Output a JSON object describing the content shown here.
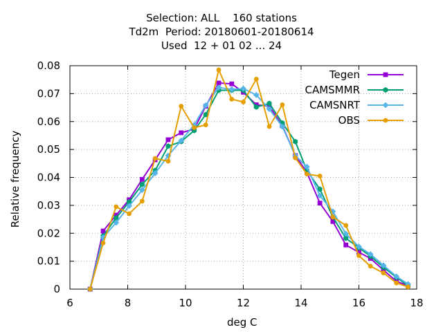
{
  "chart_data": {
    "type": "line",
    "title_lines": [
      "Selection: ALL    160 stations",
      "Td2m  Period: 20180601-20180614",
      "Used  12 + 01 02 ... 24"
    ],
    "xlabel": "deg C",
    "ylabel": "Relative frequency",
    "xlim": [
      6,
      18
    ],
    "ylim": [
      0,
      0.08
    ],
    "xticks": [
      "6",
      "8",
      "10",
      "12",
      "14",
      "16",
      "18"
    ],
    "yticks": [
      "0",
      "0.01",
      "0.02",
      "0.03",
      "0.04",
      "0.05",
      "0.06",
      "0.07",
      "0.08"
    ],
    "grid": true,
    "legend_position": "top-right",
    "x": [
      6.7,
      7.15,
      7.6,
      8.05,
      8.5,
      8.95,
      9.4,
      9.85,
      10.3,
      10.7,
      11.15,
      11.6,
      12.0,
      12.45,
      12.9,
      13.35,
      13.8,
      14.2,
      14.65,
      15.1,
      15.55,
      16.0,
      16.4,
      16.85,
      17.3,
      17.7
    ],
    "series": [
      {
        "name": "Tegen",
        "color": "#9400d3",
        "marker": "square",
        "values": [
          0.0,
          0.0208,
          0.0265,
          0.032,
          0.0393,
          0.0463,
          0.0535,
          0.056,
          0.0573,
          0.0655,
          0.0738,
          0.0735,
          0.0705,
          0.066,
          0.0655,
          0.0585,
          0.0478,
          0.0418,
          0.0308,
          0.0242,
          0.0158,
          0.0132,
          0.011,
          0.0068,
          0.0028,
          0.0012
        ]
      },
      {
        "name": "CAMSMMR",
        "color": "#009e73",
        "marker": "hexagon",
        "values": [
          0.0,
          0.019,
          0.0255,
          0.0312,
          0.0375,
          0.0425,
          0.0512,
          0.0528,
          0.0568,
          0.0625,
          0.0712,
          0.0712,
          0.0712,
          0.0652,
          0.0665,
          0.0595,
          0.0528,
          0.0425,
          0.0358,
          0.0258,
          0.0182,
          0.0148,
          0.0118,
          0.0078,
          0.0042,
          0.0012
        ]
      },
      {
        "name": "CAMSNRT",
        "color": "#56b4e9",
        "marker": "diamond",
        "values": [
          0.0,
          0.0185,
          0.0238,
          0.0298,
          0.0355,
          0.0415,
          0.0478,
          0.0532,
          0.0588,
          0.0658,
          0.0722,
          0.0715,
          0.0718,
          0.0695,
          0.0645,
          0.0582,
          0.0478,
          0.0438,
          0.0335,
          0.0278,
          0.0198,
          0.0152,
          0.0125,
          0.0085,
          0.0045,
          0.0018
        ]
      },
      {
        "name": "OBS",
        "color": "#e69f00",
        "marker": "circle",
        "values": [
          0.0,
          0.0165,
          0.0295,
          0.027,
          0.0315,
          0.0468,
          0.0458,
          0.0655,
          0.0578,
          0.0588,
          0.0785,
          0.068,
          0.067,
          0.0752,
          0.0582,
          0.066,
          0.047,
          0.0412,
          0.0405,
          0.0258,
          0.0228,
          0.012,
          0.0082,
          0.0058,
          0.0022,
          0.0008
        ]
      }
    ]
  }
}
